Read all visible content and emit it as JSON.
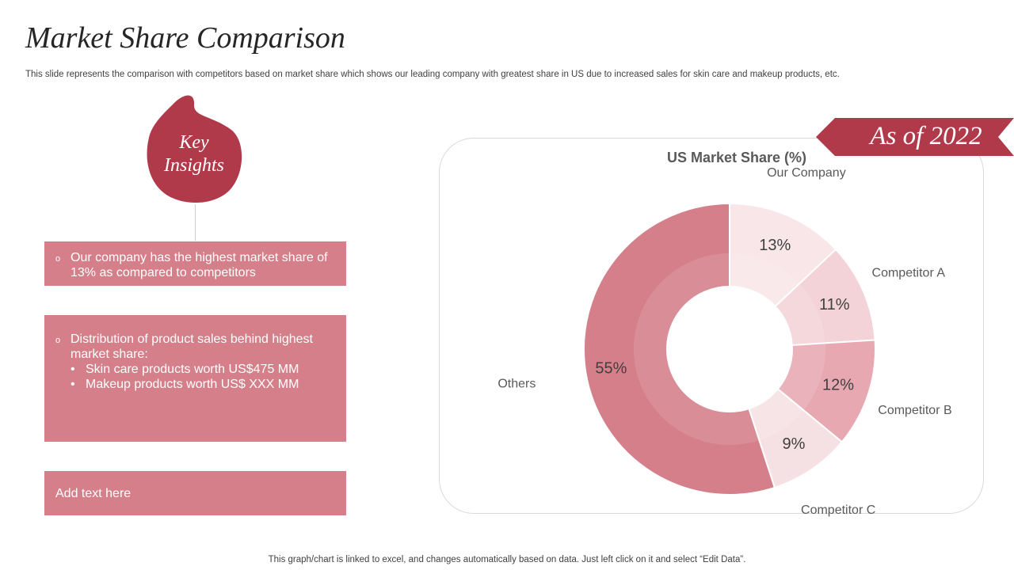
{
  "slide": {
    "title": "Market Share Comparison",
    "subtitle": "This slide represents the comparison with competitors based on market share which shows our leading company with greatest share in US due to increased sales for skin care and makeup products, etc.",
    "footer": "This graph/chart is linked to excel,  and changes automatically based on data. Just left click on it and select “Edit Data”."
  },
  "insights": {
    "heading_line1": "Key",
    "heading_line2": "Insights",
    "card1": {
      "bullet": "o",
      "text": "Our company has the highest market share of 13% as compared to competitors"
    },
    "card2": {
      "bullet": "o",
      "text": "Distribution of product sales behind highest market share:",
      "sub_items": [
        {
          "marker": "•",
          "text": "Skin care products worth US$475 MM"
        },
        {
          "marker": "•",
          "text": "Makeup products worth US$ XXX MM"
        }
      ]
    },
    "card3": {
      "text": "Add text here"
    }
  },
  "ribbon": {
    "text": "As of  2022"
  },
  "colors": {
    "accent": "#b13a4a",
    "card": "#d47f89",
    "slice_our_company": "#f9e6e9",
    "slice_competitor_a": "#f3d3d8",
    "slice_competitor_b": "#e8a8b1",
    "slice_competitor_c": "#f5e1e3",
    "slice_others": "#d47f89"
  },
  "chart_data": {
    "type": "pie",
    "variant": "donut",
    "title": "US Market Share (%)",
    "categories": [
      "Our Company",
      "Competitor A",
      "Competitor B",
      "Competitor C",
      "Others"
    ],
    "values": [
      13,
      11,
      12,
      9,
      55
    ],
    "value_labels": [
      "13%",
      "11%",
      "12%",
      "9%",
      "55%"
    ],
    "start": "12 o'clock",
    "direction": "clockwise"
  }
}
